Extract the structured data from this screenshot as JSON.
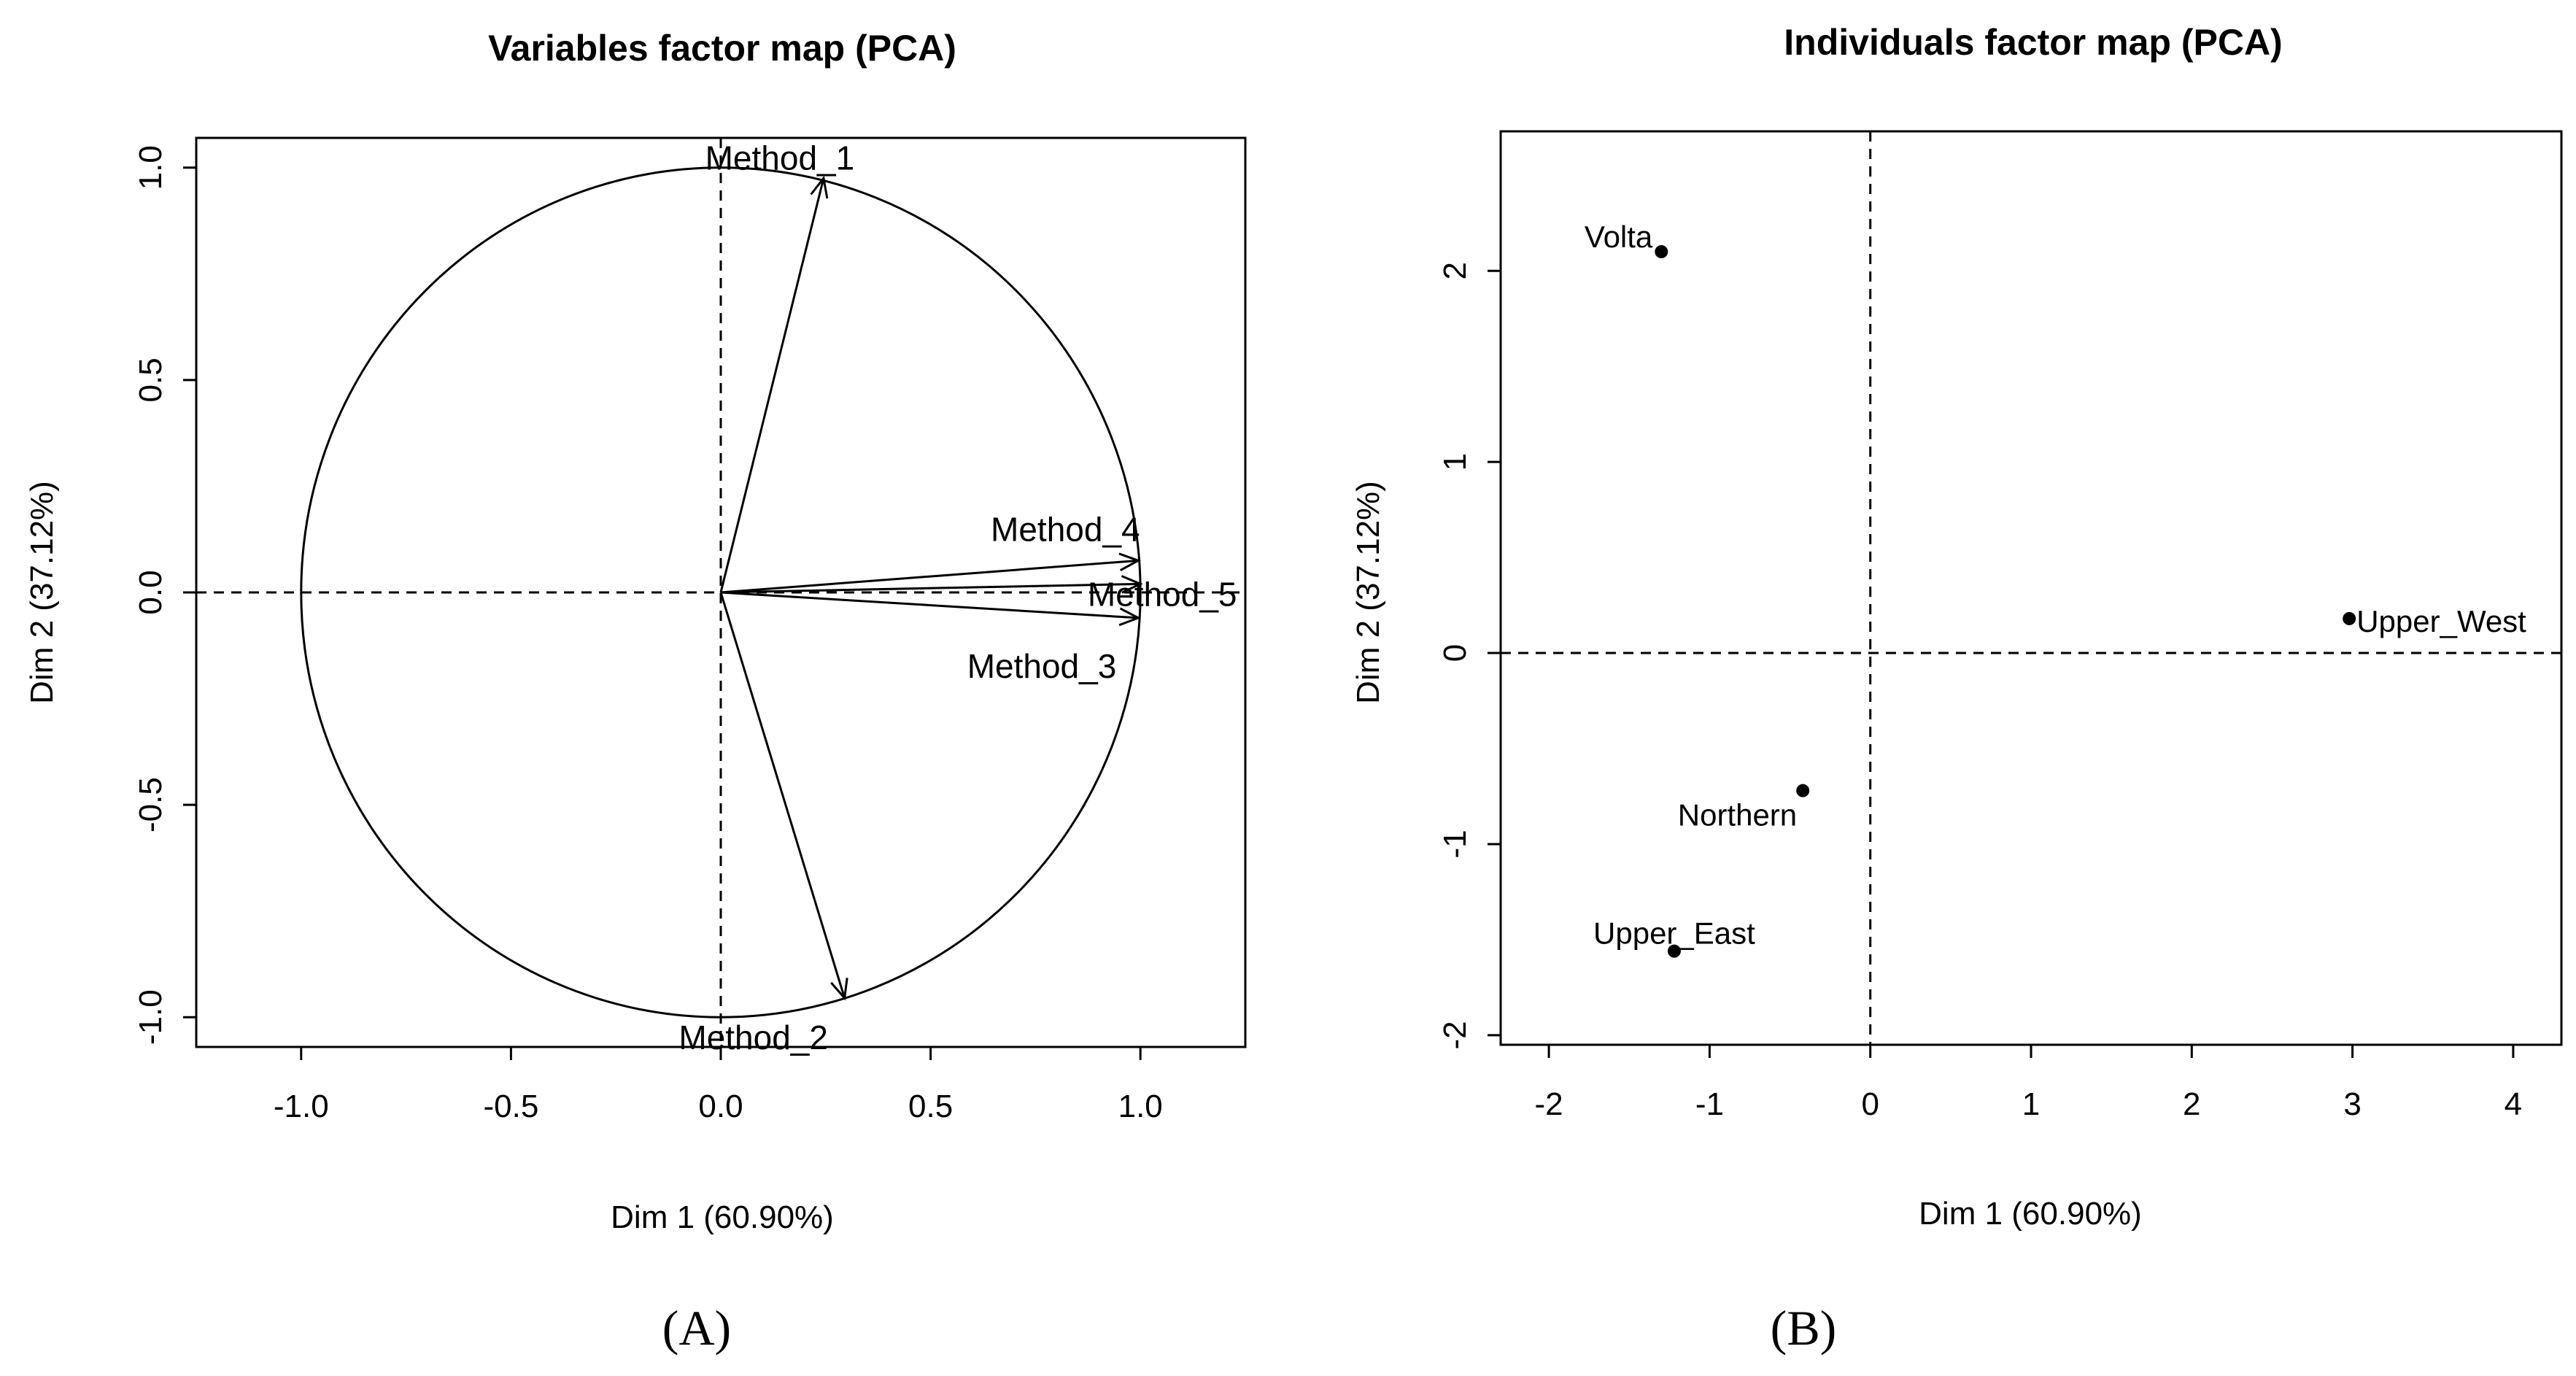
{
  "chart_data": [
    {
      "type": "scatter",
      "subtype": "pca-variables-correlation-circle",
      "title": "Variables factor map (PCA)",
      "xlabel": "Dim 1 (60.90%)",
      "ylabel": "Dim 2 (37.12%)",
      "xlim": [
        -1.25,
        1.25
      ],
      "ylim": [
        -1.07,
        1.07
      ],
      "xticks": [
        "-1.0",
        "-0.5",
        "0.0",
        "0.5",
        "1.0"
      ],
      "xtick_values": [
        -1.0,
        -0.5,
        0.0,
        0.5,
        1.0
      ],
      "yticks": [
        "-1.0",
        "-0.5",
        "0.0",
        "0.5",
        "1.0"
      ],
      "ytick_values": [
        -1.0,
        -0.5,
        0.0,
        0.5,
        1.0
      ],
      "circle_radius": 1.0,
      "variables": [
        {
          "name": "Method_1",
          "x": 0.245,
          "y": 0.975
        },
        {
          "name": "Method_2",
          "x": 0.295,
          "y": -0.955
        },
        {
          "name": "Method_3",
          "x": 0.995,
          "y": -0.06
        },
        {
          "name": "Method_4",
          "x": 0.995,
          "y": 0.075
        },
        {
          "name": "Method_5",
          "x": 1.0,
          "y": 0.02
        }
      ],
      "panel_label": "(A)"
    },
    {
      "type": "scatter",
      "subtype": "pca-individuals",
      "title": "Individuals factor map (PCA)",
      "xlabel": "Dim 1 (60.90%)",
      "ylabel": "Dim 2 (37.12%)",
      "xlim": [
        -2.3,
        4.3
      ],
      "ylim": [
        -2.05,
        2.73
      ],
      "xticks": [
        "-2",
        "-1",
        "0",
        "1",
        "2",
        "3",
        "4"
      ],
      "xtick_values": [
        -2,
        -1,
        0,
        1,
        2,
        3,
        4
      ],
      "yticks": [
        "-2",
        "-1",
        "0",
        "1",
        "2"
      ],
      "ytick_values": [
        -2,
        -1,
        0,
        1,
        2
      ],
      "points": [
        {
          "name": "Volta",
          "x": -1.3,
          "y": 2.1
        },
        {
          "name": "Upper_West",
          "x": 2.98,
          "y": 0.18
        },
        {
          "name": "Northern",
          "x": -0.42,
          "y": -0.72
        },
        {
          "name": "Upper_East",
          "x": -1.22,
          "y": -1.56
        }
      ],
      "panel_label": "(B)"
    }
  ]
}
